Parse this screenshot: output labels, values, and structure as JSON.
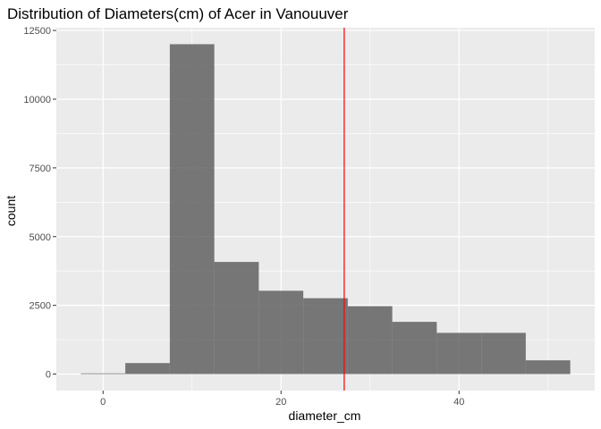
{
  "chart_data": {
    "type": "bar",
    "title": "Distribution of Diameters(cm) of Acer in Vanouuver",
    "xlabel": "diameter_cm",
    "ylabel": "count",
    "bin_width": 5,
    "bins": [
      {
        "x_start": -2.5,
        "x_end": 2.5,
        "count": 25
      },
      {
        "x_start": 2.5,
        "x_end": 7.5,
        "count": 400
      },
      {
        "x_start": 7.5,
        "x_end": 12.5,
        "count": 12000
      },
      {
        "x_start": 12.5,
        "x_end": 17.5,
        "count": 4080
      },
      {
        "x_start": 17.5,
        "x_end": 22.5,
        "count": 3030
      },
      {
        "x_start": 22.5,
        "x_end": 27.5,
        "count": 2760
      },
      {
        "x_start": 27.5,
        "x_end": 32.5,
        "count": 2470
      },
      {
        "x_start": 32.5,
        "x_end": 37.5,
        "count": 1900
      },
      {
        "x_start": 37.5,
        "x_end": 42.5,
        "count": 1500
      },
      {
        "x_start": 42.5,
        "x_end": 47.5,
        "count": 1500
      },
      {
        "x_start": 47.5,
        "x_end": 52.5,
        "count": 500
      }
    ],
    "vline": {
      "x": 27.1,
      "color": "#ff0000"
    },
    "xlim": [
      -5.25,
      55.25
    ],
    "ylim": [
      -600,
      12600
    ],
    "x_ticks": [
      0,
      20,
      40
    ],
    "x_tick_labels": [
      "0",
      "20",
      "40"
    ],
    "x_minor_ticks": [
      10,
      30,
      50
    ],
    "y_ticks": [
      0,
      2500,
      5000,
      7500,
      10000,
      12500
    ],
    "y_tick_labels": [
      "0",
      "2500",
      "5000",
      "7500",
      "10000",
      "12500"
    ],
    "y_minor_ticks": [
      1250,
      3750,
      6250,
      8750,
      11250
    ],
    "bar_color": "#595959",
    "bar_opacity": 0.8,
    "panel_background": "#ebebeb",
    "grid_color": "#ffffff",
    "grid": true,
    "legend": "none"
  }
}
